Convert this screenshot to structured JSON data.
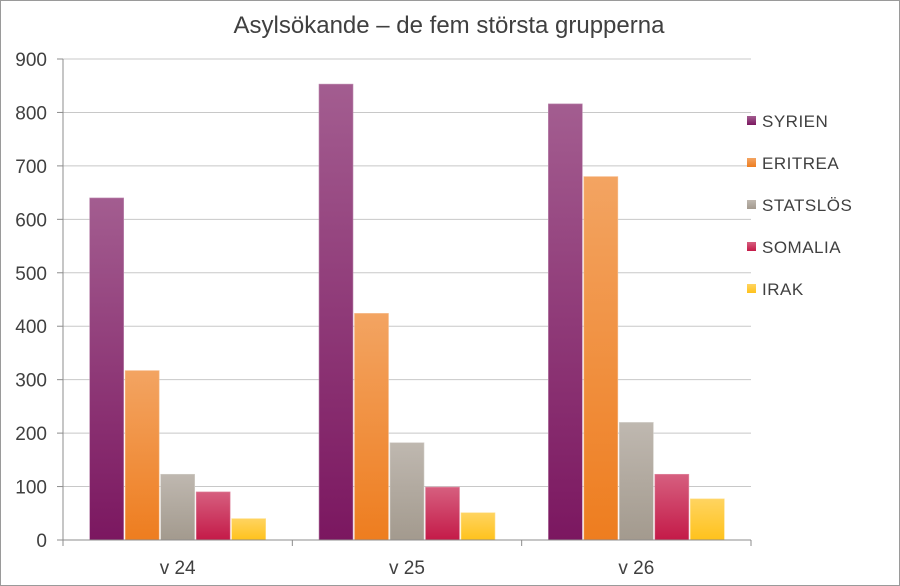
{
  "chart_data": {
    "type": "bar",
    "title": "Asylsökande – de fem största grupperna",
    "xlabel": "",
    "ylabel": "",
    "categories": [
      "v 24",
      "v 25",
      "v 26"
    ],
    "ylim": [
      0,
      900
    ],
    "yticks": [
      0,
      100,
      200,
      300,
      400,
      500,
      600,
      700,
      800,
      900
    ],
    "grid": true,
    "legend_position": "right",
    "series": [
      {
        "name": "SYRIEN",
        "color": "#7b1760",
        "values": [
          640,
          853,
          816
        ]
      },
      {
        "name": "ERITREA",
        "color": "#ee7d1f",
        "values": [
          317,
          424,
          680
        ]
      },
      {
        "name": "STATSLÖS",
        "color": "#a39a8e",
        "values": [
          123,
          182,
          220
        ]
      },
      {
        "name": "SOMALIA",
        "color": "#c41a48",
        "values": [
          90,
          99,
          123
        ]
      },
      {
        "name": "IRAK",
        "color": "#ffc21c",
        "values": [
          40,
          51,
          77
        ]
      }
    ]
  }
}
